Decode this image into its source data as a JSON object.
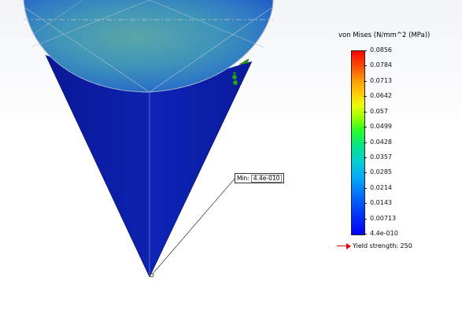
{
  "legend": {
    "title": "von Mises (N/mm^2 (MPa))",
    "values": [
      "0.0856",
      "0.0784",
      "0.0713",
      "0.0642",
      "0.057",
      "0.0499",
      "0.0428",
      "0.0357",
      "0.0285",
      "0.0214",
      "0.0143",
      "0.00713",
      "4.4e-010"
    ],
    "yield_label": "Yield strength: 250"
  },
  "probe": {
    "label": "Min:",
    "value": "4.4e-010"
  },
  "colors": {
    "cone_body": "#0a1a9c",
    "cap_top": "#3a8ab0",
    "yield_arrow": "#e00000"
  }
}
